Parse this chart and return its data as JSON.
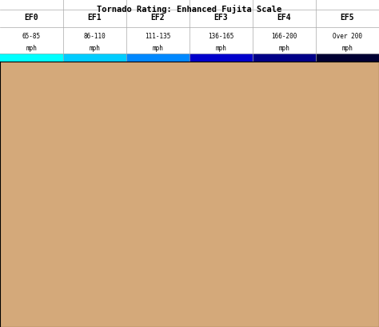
{
  "title": "Tornado Rating: Enhanced Fujita Scale",
  "ef_labels": [
    "EF0",
    "EF1",
    "EF2",
    "EF3",
    "EF4",
    "EF5"
  ],
  "ef_speeds": [
    "65-85\nmph",
    "86-110\nmph",
    "111-135\nmph",
    "136-165\nmph",
    "166-200\nmph",
    "Over 200\nmph"
  ],
  "ef_colors": [
    "#00FFFF",
    "#00CCFF",
    "#0088FF",
    "#0000CC",
    "#000088",
    "#000033"
  ],
  "background_color": "#d4a97a",
  "land_color": "#d4a97a",
  "water_color": "#ffffff",
  "border_color": "#e8c89a",
  "state_border_color": "#e8c8a0",
  "legend_bg": "#e8e8e8",
  "legend_border": "#888888",
  "title_color": "#000000",
  "header_bg": "#c8d8e8",
  "map_extent": [
    -125,
    -66,
    24,
    50
  ],
  "figsize": [
    4.74,
    4.1
  ],
  "dpi": 100
}
